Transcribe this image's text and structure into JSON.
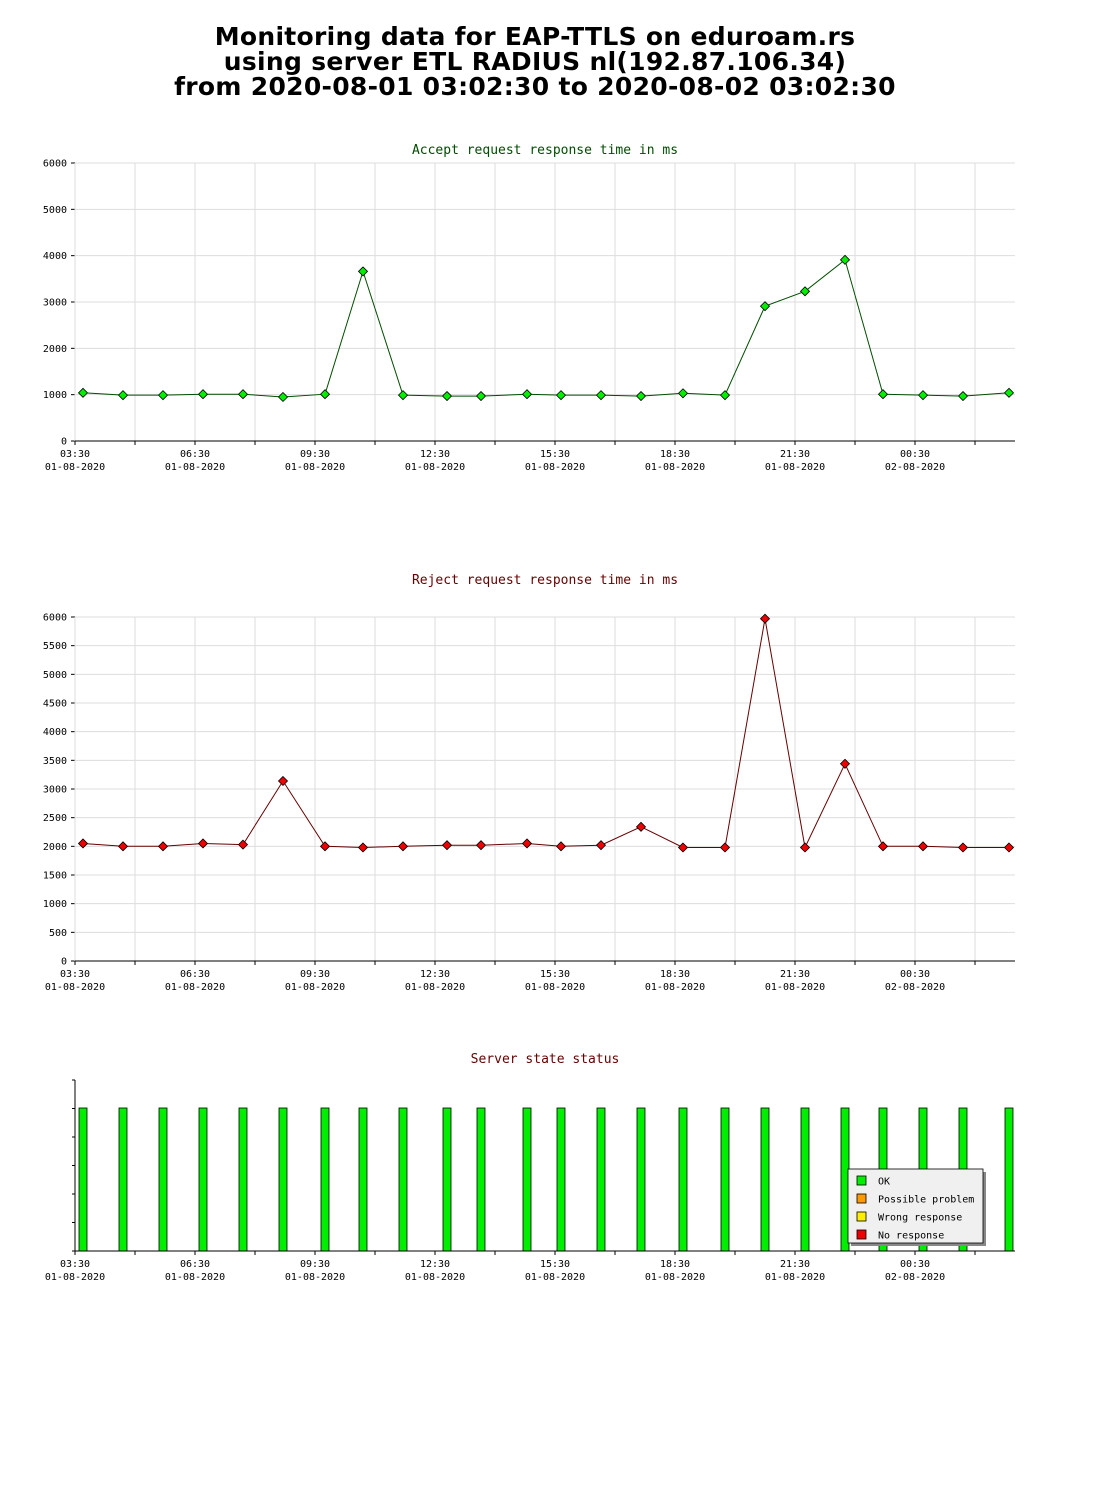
{
  "header": {
    "line1": "Monitoring data for EAP-TTLS on eduroam.rs",
    "line2": "using server ETL RADIUS nl(192.87.106.34)",
    "line3": "from 2020-08-01 03:02:30 to 2020-08-02 03:02:30"
  },
  "colors": {
    "accept_line": "#004d00",
    "accept_marker": "#00ee00",
    "reject_line": "#660000",
    "reject_marker": "#ee0000",
    "accept_title": "#004d00",
    "reject_title": "#660000",
    "status_title": "#660000",
    "grid": "#dddddd",
    "ok": "#00ee00",
    "possible_problem": "#ff9900",
    "wrong_response": "#ffee00",
    "no_response": "#ee0000"
  },
  "chart_data": [
    {
      "type": "line",
      "title": "Accept request response time in ms",
      "ylim": [
        0,
        6000
      ],
      "yticks": [
        0,
        1000,
        2000,
        3000,
        4000,
        5000,
        6000
      ],
      "grid": true,
      "xticks": [
        {
          "time": "03:30",
          "date": "01-08-2020"
        },
        {
          "time": "06:30",
          "date": "01-08-2020"
        },
        {
          "time": "09:30",
          "date": "01-08-2020"
        },
        {
          "time": "12:30",
          "date": "01-08-2020"
        },
        {
          "time": "15:30",
          "date": "01-08-2020"
        },
        {
          "time": "18:30",
          "date": "01-08-2020"
        },
        {
          "time": "21:30",
          "date": "01-08-2020"
        },
        {
          "time": "00:30",
          "date": "02-08-2020"
        }
      ],
      "x_hours": [
        3.7,
        4.7,
        5.7,
        6.7,
        7.7,
        8.7,
        9.75,
        10.7,
        11.7,
        12.8,
        13.65,
        14.8,
        15.65,
        16.65,
        17.65,
        18.7,
        19.75,
        20.75,
        21.75,
        22.75,
        23.7,
        24.7,
        25.7,
        26.85
      ],
      "values": [
        1040,
        990,
        990,
        1010,
        1010,
        950,
        1010,
        3660,
        990,
        970,
        970,
        1010,
        990,
        990,
        970,
        1030,
        990,
        2910,
        3230,
        3910,
        1010,
        990,
        970,
        1040
      ]
    },
    {
      "type": "line",
      "title": "Reject request response time in ms",
      "ylim": [
        0,
        6000
      ],
      "yticks": [
        0,
        500,
        1000,
        1500,
        2000,
        2500,
        3000,
        3500,
        4000,
        4500,
        5000,
        5500,
        6000
      ],
      "grid": true,
      "xticks": [
        {
          "time": "03:30",
          "date": "01-08-2020"
        },
        {
          "time": "06:30",
          "date": "01-08-2020"
        },
        {
          "time": "09:30",
          "date": "01-08-2020"
        },
        {
          "time": "12:30",
          "date": "01-08-2020"
        },
        {
          "time": "15:30",
          "date": "01-08-2020"
        },
        {
          "time": "18:30",
          "date": "01-08-2020"
        },
        {
          "time": "21:30",
          "date": "01-08-2020"
        },
        {
          "time": "00:30",
          "date": "02-08-2020"
        }
      ],
      "x_hours": [
        3.7,
        4.7,
        5.7,
        6.7,
        7.7,
        8.7,
        9.75,
        10.7,
        11.7,
        12.8,
        13.65,
        14.8,
        15.65,
        16.65,
        17.65,
        18.7,
        19.75,
        20.75,
        21.75,
        22.75,
        23.7,
        24.7,
        25.7,
        26.85
      ],
      "values": [
        2050,
        2000,
        2000,
        2050,
        2030,
        3140,
        2000,
        1980,
        2000,
        2020,
        2020,
        2050,
        2000,
        2020,
        2340,
        1980,
        1980,
        5970,
        1980,
        3440,
        2000,
        2000,
        1980,
        1980
      ]
    },
    {
      "type": "bar",
      "title": "Server state status",
      "xticks": [
        {
          "time": "03:30",
          "date": "01-08-2020"
        },
        {
          "time": "06:30",
          "date": "01-08-2020"
        },
        {
          "time": "09:30",
          "date": "01-08-2020"
        },
        {
          "time": "12:30",
          "date": "01-08-2020"
        },
        {
          "time": "15:30",
          "date": "01-08-2020"
        },
        {
          "time": "18:30",
          "date": "01-08-2020"
        },
        {
          "time": "21:30",
          "date": "01-08-2020"
        },
        {
          "time": "00:30",
          "date": "02-08-2020"
        }
      ],
      "x_hours": [
        3.7,
        4.7,
        5.7,
        6.7,
        7.7,
        8.7,
        9.75,
        10.7,
        11.7,
        12.8,
        13.65,
        14.8,
        15.65,
        16.65,
        17.65,
        18.7,
        19.75,
        20.75,
        21.75,
        22.75,
        23.7,
        24.7,
        25.7,
        26.85
      ],
      "states": [
        "OK",
        "OK",
        "OK",
        "OK",
        "OK",
        "OK",
        "OK",
        "OK",
        "OK",
        "OK",
        "OK",
        "OK",
        "OK",
        "OK",
        "OK",
        "OK",
        "OK",
        "OK",
        "OK",
        "OK",
        "OK",
        "OK",
        "OK",
        "OK"
      ],
      "legend_position": "bottom-right",
      "legend": [
        {
          "label": "OK",
          "color": "#00ee00"
        },
        {
          "label": "Possible problem",
          "color": "#ff9900"
        },
        {
          "label": "Wrong response",
          "color": "#ffee00"
        },
        {
          "label": "No response",
          "color": "#ee0000"
        }
      ]
    }
  ]
}
